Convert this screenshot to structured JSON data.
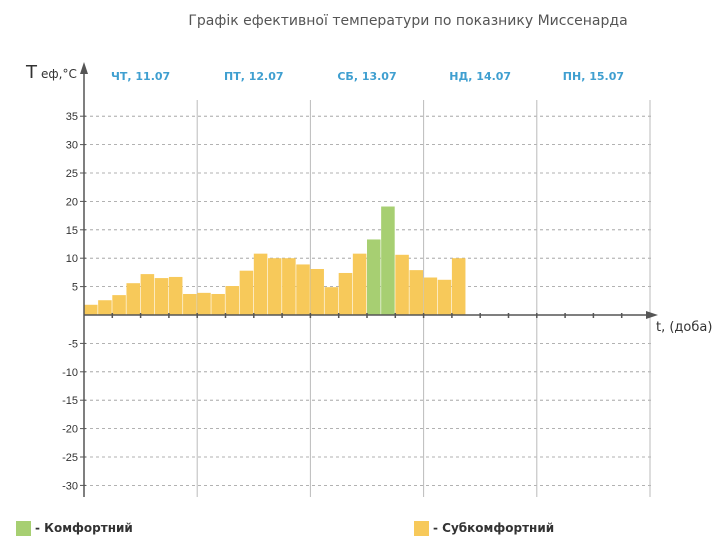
{
  "chart_data": {
    "type": "bar",
    "title": "Графік ефективної температури по показнику Миссенарда",
    "ylabel_main": "T",
    "ylabel_sub": "еф,°С",
    "xlabel": "t, (доба)",
    "ylim": [
      -32,
      39
    ],
    "yticks": [
      35,
      30,
      25,
      20,
      15,
      10,
      5,
      -5,
      -10,
      -15,
      -20,
      -25,
      -30
    ],
    "days": [
      "ЧТ, 11.07",
      "ПТ, 12.07",
      "СБ, 13.07",
      "НД, 14.07",
      "ПН, 15.07"
    ],
    "bars_per_day": 8,
    "values": [
      1.8,
      2.6,
      3.5,
      5.6,
      7.2,
      6.5,
      6.7,
      3.7,
      3.9,
      3.7,
      5.1,
      7.8,
      10.8,
      10.0,
      10.0,
      8.9,
      8.1,
      4.9,
      7.4,
      10.8,
      13.3,
      19.1,
      10.6,
      7.9,
      6.6,
      6.2,
      10.0
    ],
    "categories": [
      "Субкомфортний",
      "Субкомфортний",
      "Субкомфортний",
      "Субкомфортний",
      "Субкомфортний",
      "Субкомфортний",
      "Субкомфортний",
      "Субкомфортний",
      "Субкомфортний",
      "Субкомфортний",
      "Субкомфортний",
      "Субкомфортний",
      "Субкомфортний",
      "Субкомфортний",
      "Субкомфортний",
      "Субкомфортний",
      "Субкомфортний",
      "Субкомфортний",
      "Субкомфортний",
      "Субкомфортний",
      "Комфортний",
      "Комфортний",
      "Субкомфортний",
      "Субкомфортний",
      "Субкомфортний",
      "Субкомфортний",
      "Субкомфортний"
    ],
    "grid": true,
    "colors": {
      "Комфортний": "#a7cf72",
      "Субкомфортний": "#f7c95a"
    },
    "legend": {
      "placement": "bottom",
      "items": [
        {
          "label": "- Комфортний",
          "key": "Комфортний"
        },
        {
          "label": "- Субкомфортний",
          "key": "Субкомфортний"
        }
      ]
    }
  }
}
